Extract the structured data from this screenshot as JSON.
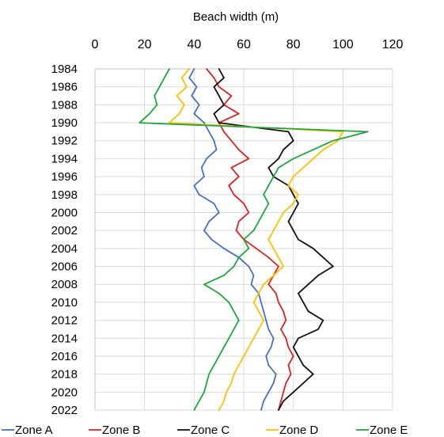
{
  "chart_data": {
    "type": "line",
    "orientation": "vertical-profile",
    "title": "",
    "xlabel": "Beach width (m)",
    "ylabel": "",
    "xlim": [
      0,
      120
    ],
    "x_ticks": [
      "0",
      "20",
      "40",
      "60",
      "80",
      "100",
      "120"
    ],
    "ylim": [
      1984,
      2022
    ],
    "y_ticks": [
      "1984",
      "1986",
      "1988",
      "1990",
      "1992",
      "1994",
      "1996",
      "1998",
      "2000",
      "2002",
      "2004",
      "2006",
      "2008",
      "2010",
      "2012",
      "2014",
      "2016",
      "2018",
      "2020",
      "2022"
    ],
    "grid": true,
    "x_axis_position": "top",
    "legend_position": "bottom",
    "note": "Each series gives beach width (x, m) at year (y). Values approximated from the figure.",
    "series": [
      {
        "name": "Zone A",
        "color": "#4472C4",
        "years": [
          1984,
          1985,
          1986,
          1987,
          1988,
          1989,
          1990,
          1991,
          1992,
          1993,
          1994,
          1995,
          1996,
          1997,
          1998,
          1999,
          2000,
          2001,
          2002,
          2003,
          2004,
          2005,
          2006,
          2007,
          2008,
          2009,
          2010,
          2011,
          2012,
          2013,
          2014,
          2015,
          2016,
          2017,
          2018,
          2019,
          2020,
          2021,
          2022
        ],
        "values": [
          40,
          38,
          41,
          39,
          42,
          40,
          44,
          46,
          48,
          49,
          45,
          43,
          44,
          40,
          42,
          48,
          50,
          46,
          44,
          47,
          52,
          58,
          62,
          64,
          63,
          66,
          67,
          68,
          69,
          70,
          72,
          71,
          69,
          70,
          73,
          72,
          70,
          68,
          67
        ]
      },
      {
        "name": "Zone B",
        "color": "#E02020",
        "years": [
          1984,
          1985,
          1986,
          1987,
          1988,
          1989,
          1990,
          1991,
          1992,
          1993,
          1994,
          1995,
          1996,
          1997,
          1998,
          1999,
          2000,
          2001,
          2002,
          2003,
          2004,
          2005,
          2006,
          2007,
          2008,
          2009,
          2010,
          2011,
          2012,
          2013,
          2014,
          2015,
          2016,
          2017,
          2018,
          2019,
          2020,
          2021,
          2022
        ],
        "values": [
          45,
          48,
          50,
          55,
          52,
          58,
          50,
          52,
          55,
          58,
          62,
          55,
          58,
          54,
          56,
          60,
          62,
          58,
          57,
          60,
          65,
          70,
          74,
          72,
          70,
          73,
          74,
          76,
          77,
          75,
          77,
          78,
          80,
          78,
          79,
          77,
          76,
          75,
          74
        ]
      },
      {
        "name": "Zone C",
        "color": "#111111",
        "years": [
          1984,
          1985,
          1986,
          1987,
          1988,
          1989,
          1990,
          1991,
          1992,
          1993,
          1994,
          1995,
          1996,
          1997,
          1998,
          1999,
          2000,
          2001,
          2002,
          2003,
          2004,
          2005,
          2006,
          2007,
          2008,
          2009,
          2010,
          2011,
          2012,
          2013,
          2014,
          2015,
          2016,
          2017,
          2018,
          2019,
          2020,
          2021,
          2022
        ],
        "values": [
          50,
          52,
          48,
          50,
          52,
          48,
          50,
          78,
          80,
          76,
          74,
          70,
          72,
          78,
          80,
          82,
          80,
          78,
          80,
          82,
          88,
          92,
          96,
          90,
          86,
          82,
          84,
          86,
          92,
          90,
          82,
          80,
          82,
          84,
          88,
          84,
          80,
          76,
          74
        ]
      },
      {
        "name": "Zone D",
        "color": "#FFC000",
        "years": [
          1984,
          1985,
          1986,
          1987,
          1988,
          1989,
          1990,
          1991,
          1992,
          1993,
          1994,
          1995,
          1996,
          1997,
          1998,
          1999,
          2000,
          2001,
          2002,
          2003,
          2004,
          2005,
          2006,
          2007,
          2008,
          2009,
          2010,
          2011,
          2012,
          2013,
          2014,
          2015,
          2016,
          2017,
          2018,
          2019,
          2020,
          2021,
          2022
        ],
        "values": [
          38,
          35,
          37,
          33,
          36,
          34,
          30,
          100,
          98,
          92,
          88,
          84,
          80,
          78,
          82,
          80,
          76,
          74,
          72,
          70,
          72,
          74,
          76,
          72,
          68,
          66,
          64,
          66,
          68,
          66,
          64,
          62,
          60,
          58,
          56,
          55,
          53,
          52,
          50
        ]
      },
      {
        "name": "Zone E",
        "color": "#1EA83C",
        "years": [
          1984,
          1985,
          1986,
          1987,
          1988,
          1989,
          1990,
          1991,
          1992,
          1993,
          1994,
          1995,
          1996,
          1997,
          1998,
          1999,
          2000,
          2001,
          2002,
          2003,
          2004,
          2005,
          2006,
          2007,
          2008,
          2009,
          2010,
          2011,
          2012,
          2013,
          2014,
          2015,
          2016,
          2017,
          2018,
          2019,
          2020,
          2021,
          2022
        ],
        "values": [
          30,
          28,
          26,
          24,
          25,
          22,
          18,
          110,
          96,
          88,
          80,
          74,
          72,
          70,
          68,
          70,
          68,
          66,
          64,
          60,
          62,
          58,
          56,
          52,
          44,
          50,
          54,
          56,
          58,
          56,
          54,
          52,
          50,
          48,
          46,
          45,
          44,
          42,
          40
        ]
      }
    ]
  }
}
